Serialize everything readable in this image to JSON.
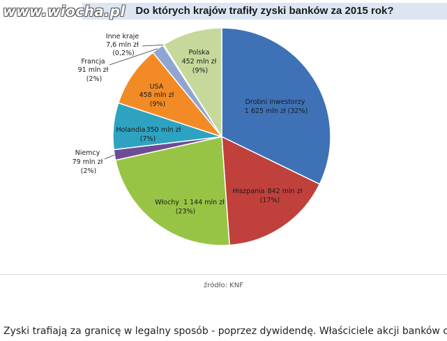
{
  "watermark": "www.wiocha.pl",
  "chart_data": {
    "type": "pie",
    "title": "Do których krajów trafiły zyski banków za 2015 rok?",
    "slices": [
      {
        "name": "Drobni inwestorzy",
        "value_text": "1 625 mln  zł (32%)",
        "value": 1625,
        "percent": 32,
        "color": "#3e71b6"
      },
      {
        "name": "Hiszpania",
        "value_text": "842 mln  zł",
        "value": 842,
        "percent": 17,
        "percent_text": "(17%)",
        "color": "#c0403c"
      },
      {
        "name": "Włochy",
        "value_text": "1 144 mln  zł",
        "value": 1144,
        "percent": 23,
        "percent_text": "(23%)",
        "color": "#98c446"
      },
      {
        "name": "Niemcy",
        "value_text": "79 mln  zł",
        "value": 79,
        "percent": 2,
        "percent_text": "(2%)",
        "color": "#6d4c95"
      },
      {
        "name": "Holandia",
        "value_text": "350 mln  zł",
        "value": 350,
        "percent": 7,
        "percent_text": "(7%)",
        "color": "#2ea3c1"
      },
      {
        "name": "USA",
        "value_text": "458 mln  zł",
        "value": 458,
        "percent": 9,
        "percent_text": "(9%)",
        "color": "#f28b26"
      },
      {
        "name": "Francja",
        "value_text": "91 mln  zł",
        "value": 91,
        "percent": 2,
        "percent_text": "(2%)",
        "color": "#8fa6d2"
      },
      {
        "name": "Inne kraje",
        "value_text": "7,6 mln  zł",
        "value": 7.6,
        "percent": 0.2,
        "percent_text": "(0,2%)",
        "color": "#c6d39b"
      },
      {
        "name": "Polska",
        "value_text": "452 mln  zł",
        "value": 452,
        "percent": 9,
        "percent_text": "(9%)",
        "color": "#c6d89a"
      }
    ]
  },
  "source": "źródło: KNF",
  "body_text": "Zyski trafiają za granicę w legalny sposób - poprzez dywidendę. Właściciele akcji banków co"
}
